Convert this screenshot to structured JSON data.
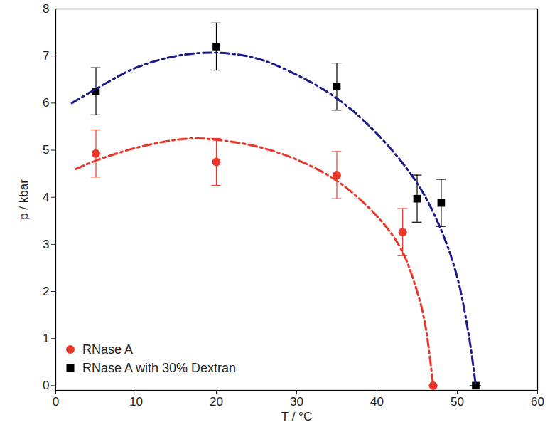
{
  "chart_data": {
    "type": "scatter",
    "x_label": "T / °C",
    "y_label": "p / kbar",
    "xlim": [
      0,
      60
    ],
    "xticks": [
      0,
      10,
      20,
      30,
      40,
      50,
      60
    ],
    "ylim": [
      -0.1,
      8
    ],
    "yticks": [
      0,
      1,
      2,
      3,
      4,
      5,
      6,
      7,
      8
    ],
    "legend": "lower left",
    "series": [
      {
        "name": "RNase A",
        "type": "scatter",
        "marker": "circle",
        "color": "#e8362b",
        "x": [
          5,
          20,
          35,
          43.2,
          47
        ],
        "values": [
          4.93,
          4.75,
          4.47,
          3.26,
          0
        ],
        "y_errors": [
          0.5,
          0.5,
          0.5,
          0.5,
          0
        ],
        "x_errors": [
          0,
          0,
          0,
          0,
          0.6
        ]
      },
      {
        "name": "RNase A with 30% Dextran",
        "type": "scatter",
        "marker": "square",
        "color": "#000000",
        "x": [
          5,
          20,
          35,
          45,
          48,
          52.3
        ],
        "values": [
          6.25,
          7.2,
          6.35,
          3.97,
          3.88,
          0
        ],
        "y_errors": [
          0.5,
          0.5,
          0.5,
          0.5,
          0.5,
          0
        ],
        "x_errors": [
          0,
          0,
          0,
          0,
          0,
          0.7
        ]
      },
      {
        "name": null,
        "type": "line",
        "line_style": "dashdot",
        "color": "#e8362b",
        "x": [
          2.5,
          5,
          10,
          15,
          17.5,
          20,
          25,
          30,
          35,
          40,
          43,
          45,
          46,
          47
        ],
        "values": [
          4.6,
          4.78,
          5.05,
          5.22,
          5.25,
          5.22,
          5.08,
          4.8,
          4.35,
          3.6,
          2.9,
          2.0,
          1.3,
          0
        ]
      },
      {
        "name": null,
        "type": "line",
        "line_style": "dashdot",
        "color": "#1c1c8a",
        "x": [
          2,
          5,
          10,
          15,
          20,
          25,
          30,
          35,
          40,
          45,
          48,
          50,
          51.5,
          52.3
        ],
        "values": [
          6.0,
          6.3,
          6.75,
          7.0,
          7.07,
          6.95,
          6.6,
          6.1,
          5.35,
          4.3,
          3.3,
          2.3,
          1.0,
          0
        ]
      }
    ]
  }
}
